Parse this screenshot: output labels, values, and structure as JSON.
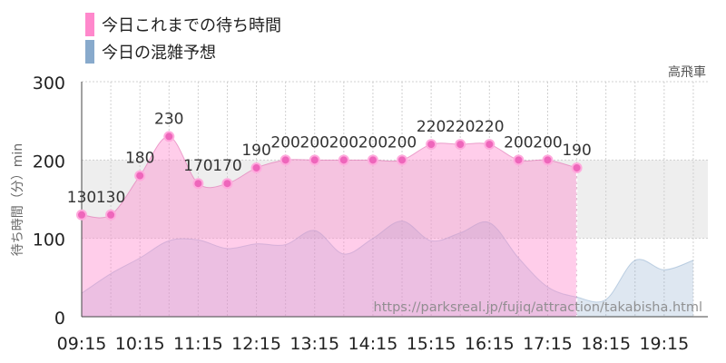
{
  "chart_data": {
    "type": "area",
    "legend_position": "top-left",
    "attraction": "高飛車",
    "ylabel": "待ち時間（分）min",
    "ylim": [
      0,
      300
    ],
    "y_ticks": [
      0,
      100,
      200,
      300
    ],
    "x_tick_labels": [
      "09:15",
      "10:15",
      "11:15",
      "12:15",
      "13:15",
      "14:15",
      "15:15",
      "16:15",
      "17:15",
      "18:15",
      "19:15"
    ],
    "watermark": "https://parksreal.jp/fujiq/attraction/takabisha.html",
    "colors": {
      "actual": "#ff88cc",
      "forecast": "#88aacc",
      "band": "#eeeeee"
    },
    "series": [
      {
        "name": "今日これまでの待ち時間",
        "x": [
          "09:15",
          "09:45",
          "10:15",
          "10:45",
          "11:15",
          "11:45",
          "12:15",
          "12:45",
          "13:15",
          "13:45",
          "14:15",
          "14:45",
          "15:15",
          "15:45",
          "16:15",
          "16:45",
          "17:15",
          "17:45"
        ],
        "values": [
          130,
          130,
          180,
          230,
          170,
          170,
          190,
          200,
          200,
          200,
          200,
          200,
          220,
          220,
          220,
          200,
          200,
          190
        ]
      },
      {
        "name": "今日の混雑予想",
        "x": [
          "09:15",
          "09:45",
          "10:15",
          "10:45",
          "11:15",
          "11:45",
          "12:15",
          "12:45",
          "13:15",
          "13:45",
          "14:15",
          "14:45",
          "15:15",
          "15:45",
          "16:15",
          "16:45",
          "17:15",
          "17:45",
          "18:15",
          "18:45",
          "19:15",
          "19:45"
        ],
        "values": [
          30,
          55,
          75,
          97,
          98,
          87,
          93,
          92,
          110,
          80,
          100,
          122,
          97,
          107,
          120,
          75,
          38,
          25,
          22,
          72,
          60,
          72
        ]
      }
    ]
  }
}
